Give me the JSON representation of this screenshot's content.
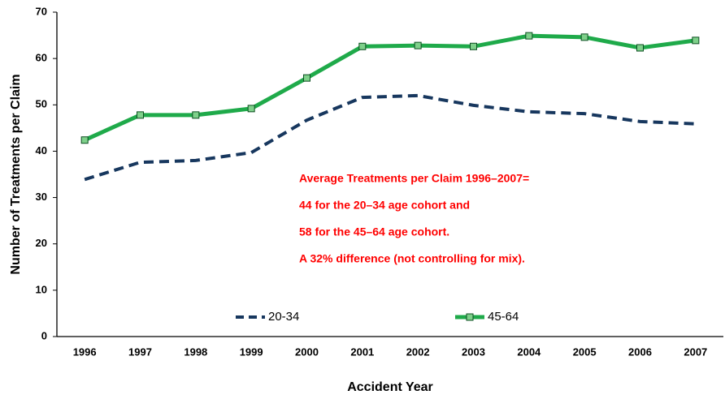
{
  "chart_data": {
    "type": "line",
    "x_label": "Accident Year",
    "y_label": "Number of Treatments per Claim",
    "categories": [
      "1996",
      "1997",
      "1998",
      "1999",
      "2000",
      "2001",
      "2002",
      "2003",
      "2004",
      "2005",
      "2006",
      "2007"
    ],
    "series": [
      {
        "name": "20-34",
        "color": "#17375e",
        "dash": true,
        "marker": "none",
        "values": [
          33.9,
          37.6,
          38.0,
          39.7,
          46.7,
          51.6,
          52.0,
          49.9,
          48.5,
          48.1,
          46.4,
          45.9
        ]
      },
      {
        "name": "45-64",
        "color": "#1faa4a",
        "dash": false,
        "marker": "square",
        "values": [
          42.4,
          47.8,
          47.8,
          49.2,
          55.8,
          62.6,
          62.8,
          62.6,
          64.9,
          64.6,
          62.3,
          63.9
        ]
      }
    ],
    "ylim": [
      0,
      70
    ],
    "yticks": [
      0,
      10,
      20,
      30,
      40,
      50,
      60,
      70
    ],
    "grid": false,
    "annotations": [
      "Average Treatments per Claim 1996–2007=",
      "44 for the 20–34 age cohort and",
      "58 for the 45–64 age cohort.",
      "A 32% difference (not controlling for mix)."
    ]
  }
}
